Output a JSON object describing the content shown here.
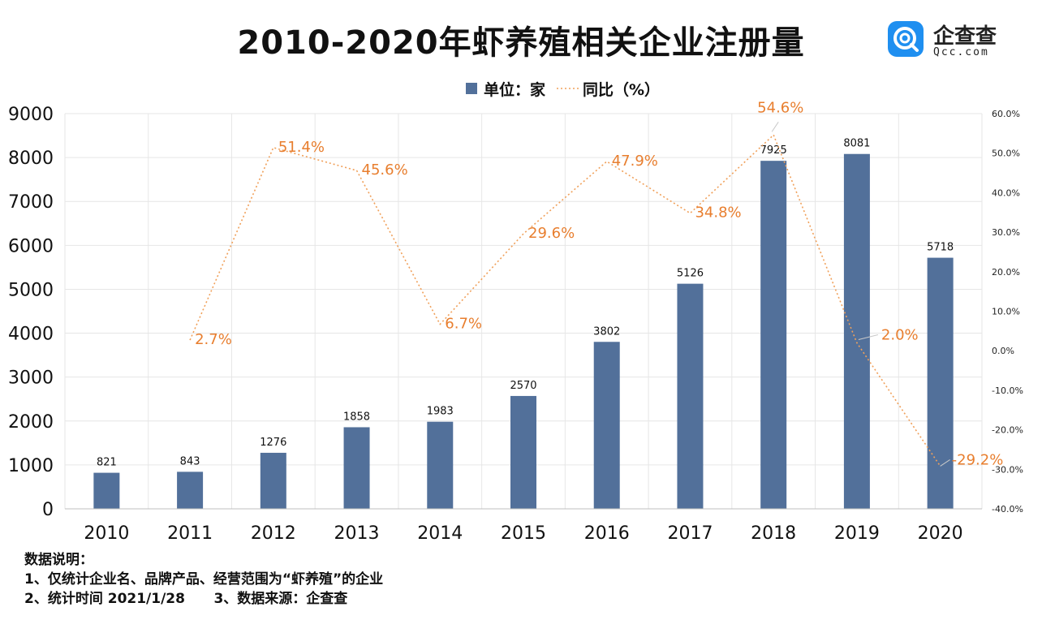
{
  "title": "2010-2020年虾养殖相关企业注册量",
  "logo": {
    "brand": "企查查",
    "domain": "Qcc.com",
    "icon": "qcc-logo-icon"
  },
  "notes": {
    "heading": "数据说明：",
    "line1": "1、仅统计企业名、品牌产品、经营范围为“虾养殖”的企业",
    "line2": "2、统计时间 2021/1/28      3、数据来源：企查查"
  },
  "colors": {
    "bar": "#52709a",
    "line": "#f0a05a",
    "label_line": "#e87e2e",
    "grid": "#e6e6e6"
  },
  "chart_data": {
    "type": "bar",
    "categories": [
      "2010",
      "2011",
      "2012",
      "2013",
      "2014",
      "2015",
      "2016",
      "2017",
      "2018",
      "2019",
      "2020"
    ],
    "series": [
      {
        "name": "单位：家",
        "type": "bar",
        "axis": "left",
        "values": [
          821,
          843,
          1276,
          1858,
          1983,
          2570,
          3802,
          5126,
          7925,
          8081,
          5718
        ]
      },
      {
        "name": "同比（%）",
        "type": "line",
        "axis": "right",
        "values": [
          null,
          2.7,
          51.4,
          45.6,
          6.7,
          29.6,
          47.9,
          34.8,
          54.6,
          2.0,
          -29.2
        ],
        "labels": [
          null,
          "2.7%",
          "51.4%",
          "45.6%",
          "6.7%",
          "29.6%",
          "47.9%",
          "34.8%",
          "54.6%",
          "2.0%",
          "-29.2%"
        ]
      }
    ],
    "y_left": {
      "range": [
        0,
        9000
      ],
      "ticks": [
        "0",
        "1000",
        "2000",
        "3000",
        "4000",
        "5000",
        "6000",
        "7000",
        "8000",
        "9000"
      ]
    },
    "y_right": {
      "range": [
        -40,
        60
      ],
      "ticks": [
        "-40.0%",
        "-30.0%",
        "-20.0%",
        "-10.0%",
        "0.0%",
        "10.0%",
        "20.0%",
        "30.0%",
        "40.0%",
        "50.0%",
        "60.0%"
      ]
    },
    "grid": true,
    "legend": "top-center"
  }
}
